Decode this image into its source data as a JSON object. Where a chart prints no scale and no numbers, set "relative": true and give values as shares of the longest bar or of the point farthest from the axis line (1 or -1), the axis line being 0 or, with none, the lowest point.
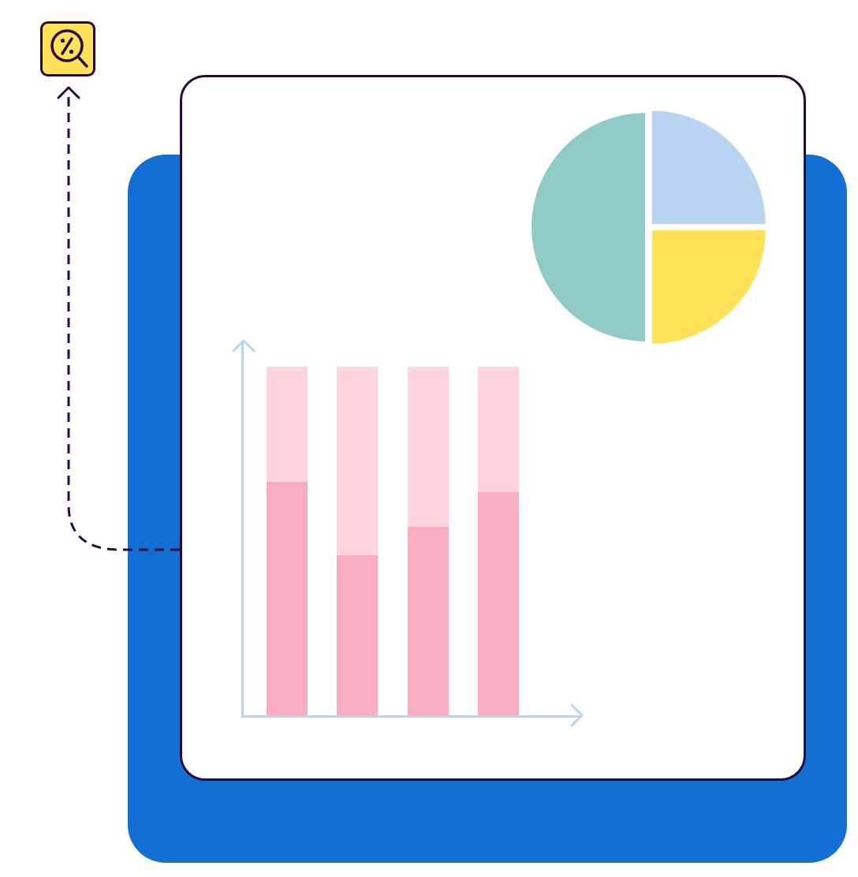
{
  "chart_data": [
    {
      "type": "pie",
      "categories": [
        null,
        null,
        null
      ],
      "values": [
        25,
        25,
        50
      ],
      "colors": [
        "#b8d4f1",
        "#ffe257",
        "#8fcbc4"
      ]
    },
    {
      "type": "bar",
      "categories": [
        null,
        null,
        null,
        null
      ],
      "stacked": true,
      "relative": true,
      "series": [
        {
          "color": "#f9adc0",
          "values": [
            0.67,
            0.46,
            0.54,
            0.64
          ]
        },
        {
          "color": "#fcd5de",
          "values": [
            0.33,
            0.54,
            0.46,
            0.36
          ]
        }
      ]
    }
  ]
}
